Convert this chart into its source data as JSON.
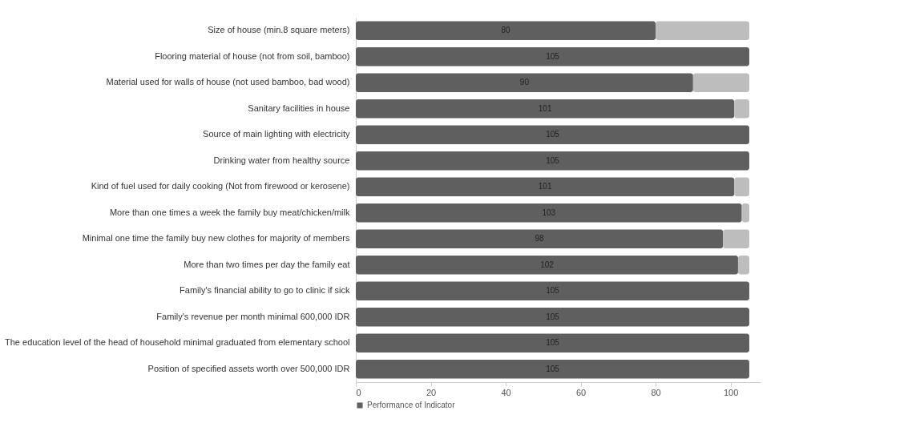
{
  "chart_data": {
    "type": "bar",
    "orientation": "horizontal",
    "stacked": true,
    "categories": [
      "Size of house (min.8 square meters)",
      "Flooring material of house (not from soil, bamboo)",
      "Material used for walls of house (not used bamboo, bad wood)",
      "Sanitary facilities in house",
      "Source of main lighting with electricity",
      "Drinking water from healthy source",
      "Kind of fuel used for daily cooking (Not from firewood or kerosene)",
      "More than one times a week the family buy meat/chicken/milk",
      "Minimal one time the family buy new clothes for majority of members",
      "More than two times per day the family eat",
      "Family's financial ability to go to clinic if sick",
      "Family's revenue per month minimal 600,000 IDR",
      "The education level of the head of household minimal graduated from elementary school",
      "Position of specified assets worth over 500,000 IDR"
    ],
    "series": [
      {
        "name": "Performance of Indicator",
        "color": "#5f5f5f",
        "values": [
          80,
          105,
          90,
          101,
          105,
          105,
          101,
          103,
          98,
          102,
          105,
          105,
          105,
          105
        ],
        "value_labels": [
          "80",
          "105",
          "90",
          "101",
          "105",
          "105",
          "101",
          "103",
          "98",
          "102",
          "105",
          "105",
          "105",
          "105"
        ]
      },
      {
        "color": "#bdbdbd",
        "values": [
          25,
          0,
          15,
          4,
          0,
          0,
          4,
          2,
          7,
          3,
          0,
          0,
          0,
          0
        ]
      }
    ],
    "xlim": [
      0,
      108
    ],
    "xticks": [
      0,
      20,
      40,
      60,
      80,
      100
    ],
    "grid": false,
    "legend": "bottom"
  }
}
